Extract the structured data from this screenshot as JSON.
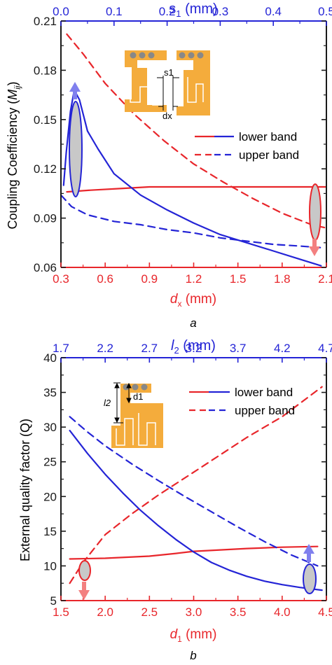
{
  "colors": {
    "red": "#e8262b",
    "blue": "#2424d6",
    "pcb": "#f4ac3c",
    "axis": "#1a1a1a",
    "oval_fill": "#c8c8c8",
    "arrow_blue": "#8080ee",
    "arrow_red": "#f38080"
  },
  "panels": {
    "a": {
      "caption": "a"
    },
    "b": {
      "caption": "b"
    }
  },
  "chart_data": [
    {
      "id": "a",
      "type": "line",
      "xlabel": "dx (mm)",
      "xlabel_main": "d",
      "xlabel_sub": "x",
      "xlabel_unit": " (mm)",
      "x2label": "s1 (mm)",
      "x2label_main": "s",
      "x2label_sub": "1",
      "x2label_unit": " (mm)",
      "ylabel": "Coupling Coefficiency (Mij)",
      "ylabel_main": "Coupling Coefficiency (",
      "ylabel_italic": "M",
      "ylabel_sub": "ij",
      "ylabel_close": ")",
      "xlim": [
        0.3,
        2.1
      ],
      "x2lim": [
        0.0,
        0.5
      ],
      "ylim": [
        0.06,
        0.21
      ],
      "x_ticks": [
        0.3,
        0.6,
        0.9,
        1.2,
        1.5,
        1.8,
        2.1
      ],
      "x_tick_labels": [
        "0.3",
        "0.6",
        "0.9",
        "1.2",
        "1.5",
        "1.8",
        "2.1"
      ],
      "x2_ticks": [
        0.0,
        0.1,
        0.2,
        0.3,
        0.4,
        0.5
      ],
      "x2_tick_labels": [
        "0.0",
        "0.1",
        "0.2",
        "0.3",
        "0.4",
        "0.5"
      ],
      "y_ticks": [
        0.06,
        0.09,
        0.12,
        0.15,
        0.18,
        0.21
      ],
      "y_tick_labels": [
        "0.06",
        "0.09",
        "0.12",
        "0.15",
        "0.18",
        "0.21"
      ],
      "legend": [
        "lower band",
        "upper band"
      ],
      "legend_position": "right",
      "series": [
        {
          "axis": "bottom",
          "color": "red",
          "dash": false,
          "x": [
            0.34,
            0.5,
            0.7,
            0.9,
            1.2,
            1.5,
            1.8,
            2.1
          ],
          "y": [
            0.106,
            0.107,
            0.108,
            0.109,
            0.109,
            0.109,
            0.109,
            0.109
          ]
        },
        {
          "axis": "bottom",
          "color": "red",
          "dash": true,
          "x": [
            0.34,
            0.45,
            0.6,
            0.8,
            1.0,
            1.2,
            1.4,
            1.6,
            1.8,
            2.0,
            2.1
          ],
          "y": [
            0.202,
            0.19,
            0.172,
            0.153,
            0.137,
            0.123,
            0.112,
            0.102,
            0.093,
            0.086,
            0.084
          ]
        },
        {
          "axis": "top",
          "color": "blue",
          "dash": false,
          "x": [
            0.005,
            0.01,
            0.018,
            0.025,
            0.035,
            0.05,
            0.07,
            0.1,
            0.15,
            0.2,
            0.25,
            0.3,
            0.35,
            0.4,
            0.45,
            0.49
          ],
          "y": [
            0.11,
            0.13,
            0.155,
            0.168,
            0.162,
            0.143,
            0.132,
            0.117,
            0.104,
            0.095,
            0.087,
            0.08,
            0.075,
            0.07,
            0.065,
            0.061
          ]
        },
        {
          "axis": "top",
          "color": "blue",
          "dash": true,
          "x": [
            0.0,
            0.02,
            0.05,
            0.1,
            0.15,
            0.2,
            0.25,
            0.3,
            0.35,
            0.4,
            0.45,
            0.49
          ],
          "y": [
            0.104,
            0.097,
            0.092,
            0.088,
            0.086,
            0.083,
            0.081,
            0.078,
            0.076,
            0.074,
            0.073,
            0.072
          ]
        }
      ],
      "inset": {
        "dim_labels": [
          "s1",
          "dx"
        ]
      }
    },
    {
      "id": "b",
      "type": "line",
      "xlabel": "d1 (mm)",
      "xlabel_main": "d",
      "xlabel_sub": "1",
      "xlabel_unit": " (mm)",
      "x2label": "l2 (mm)",
      "x2label_main": "l",
      "x2label_sub": "2",
      "x2label_unit": " (mm)",
      "ylabel": "External quality factor (Q)",
      "ylabel_main": "External quality factor (Q)",
      "xlim": [
        1.5,
        4.5
      ],
      "x2lim": [
        1.7,
        4.7
      ],
      "ylim": [
        5,
        40
      ],
      "x_ticks": [
        1.5,
        2.0,
        2.5,
        3.0,
        3.5,
        4.0,
        4.5
      ],
      "x_tick_labels": [
        "1.5",
        "2.0",
        "2.5",
        "3.0",
        "3.5",
        "4.0",
        "4.5"
      ],
      "x2_ticks": [
        1.7,
        2.2,
        2.7,
        3.2,
        3.7,
        4.2,
        4.7
      ],
      "x2_tick_labels": [
        "1.7",
        "2.2",
        "2.7",
        "3.2",
        "3.7",
        "4.2",
        "4.7"
      ],
      "y_ticks": [
        5,
        10,
        15,
        20,
        25,
        30,
        35,
        40
      ],
      "y_tick_labels": [
        "5",
        "10",
        "15",
        "20",
        "25",
        "30",
        "35",
        "40"
      ],
      "legend": [
        "lower band",
        "upper band"
      ],
      "legend_position": "top-right",
      "series": [
        {
          "axis": "bottom",
          "color": "red",
          "dash": false,
          "x": [
            1.6,
            2.0,
            2.5,
            2.8,
            3.0,
            3.3,
            3.6,
            4.0,
            4.4
          ],
          "y": [
            11.0,
            11.1,
            11.4,
            11.8,
            12.1,
            12.3,
            12.5,
            12.7,
            12.8
          ]
        },
        {
          "axis": "bottom",
          "color": "red",
          "dash": true,
          "x": [
            1.6,
            1.75,
            2.0,
            2.3,
            2.6,
            3.0,
            3.3,
            3.6,
            4.0,
            4.45
          ],
          "y": [
            7.5,
            10.5,
            14.5,
            17.5,
            20.2,
            23.5,
            26.0,
            28.5,
            31.5,
            35.8
          ]
        },
        {
          "axis": "top",
          "color": "blue",
          "dash": false,
          "x": [
            1.8,
            2.0,
            2.2,
            2.4,
            2.6,
            2.8,
            3.0,
            3.2,
            3.4,
            3.6,
            3.8,
            4.0,
            4.2,
            4.4,
            4.65
          ],
          "y": [
            29.5,
            26.2,
            23.2,
            20.5,
            18.0,
            15.8,
            13.8,
            12.0,
            10.5,
            9.4,
            8.5,
            7.8,
            7.3,
            6.9,
            6.5
          ]
        },
        {
          "axis": "top",
          "color": "blue",
          "dash": true,
          "x": [
            1.8,
            2.0,
            2.2,
            2.5,
            2.8,
            3.1,
            3.4,
            3.7,
            4.0,
            4.3,
            4.6
          ],
          "y": [
            31.5,
            29.3,
            27.3,
            24.7,
            22.3,
            20.0,
            17.8,
            15.6,
            13.5,
            11.6,
            10.0
          ]
        }
      ],
      "inset": {
        "dim_labels": [
          "d1",
          "l2"
        ]
      }
    }
  ]
}
